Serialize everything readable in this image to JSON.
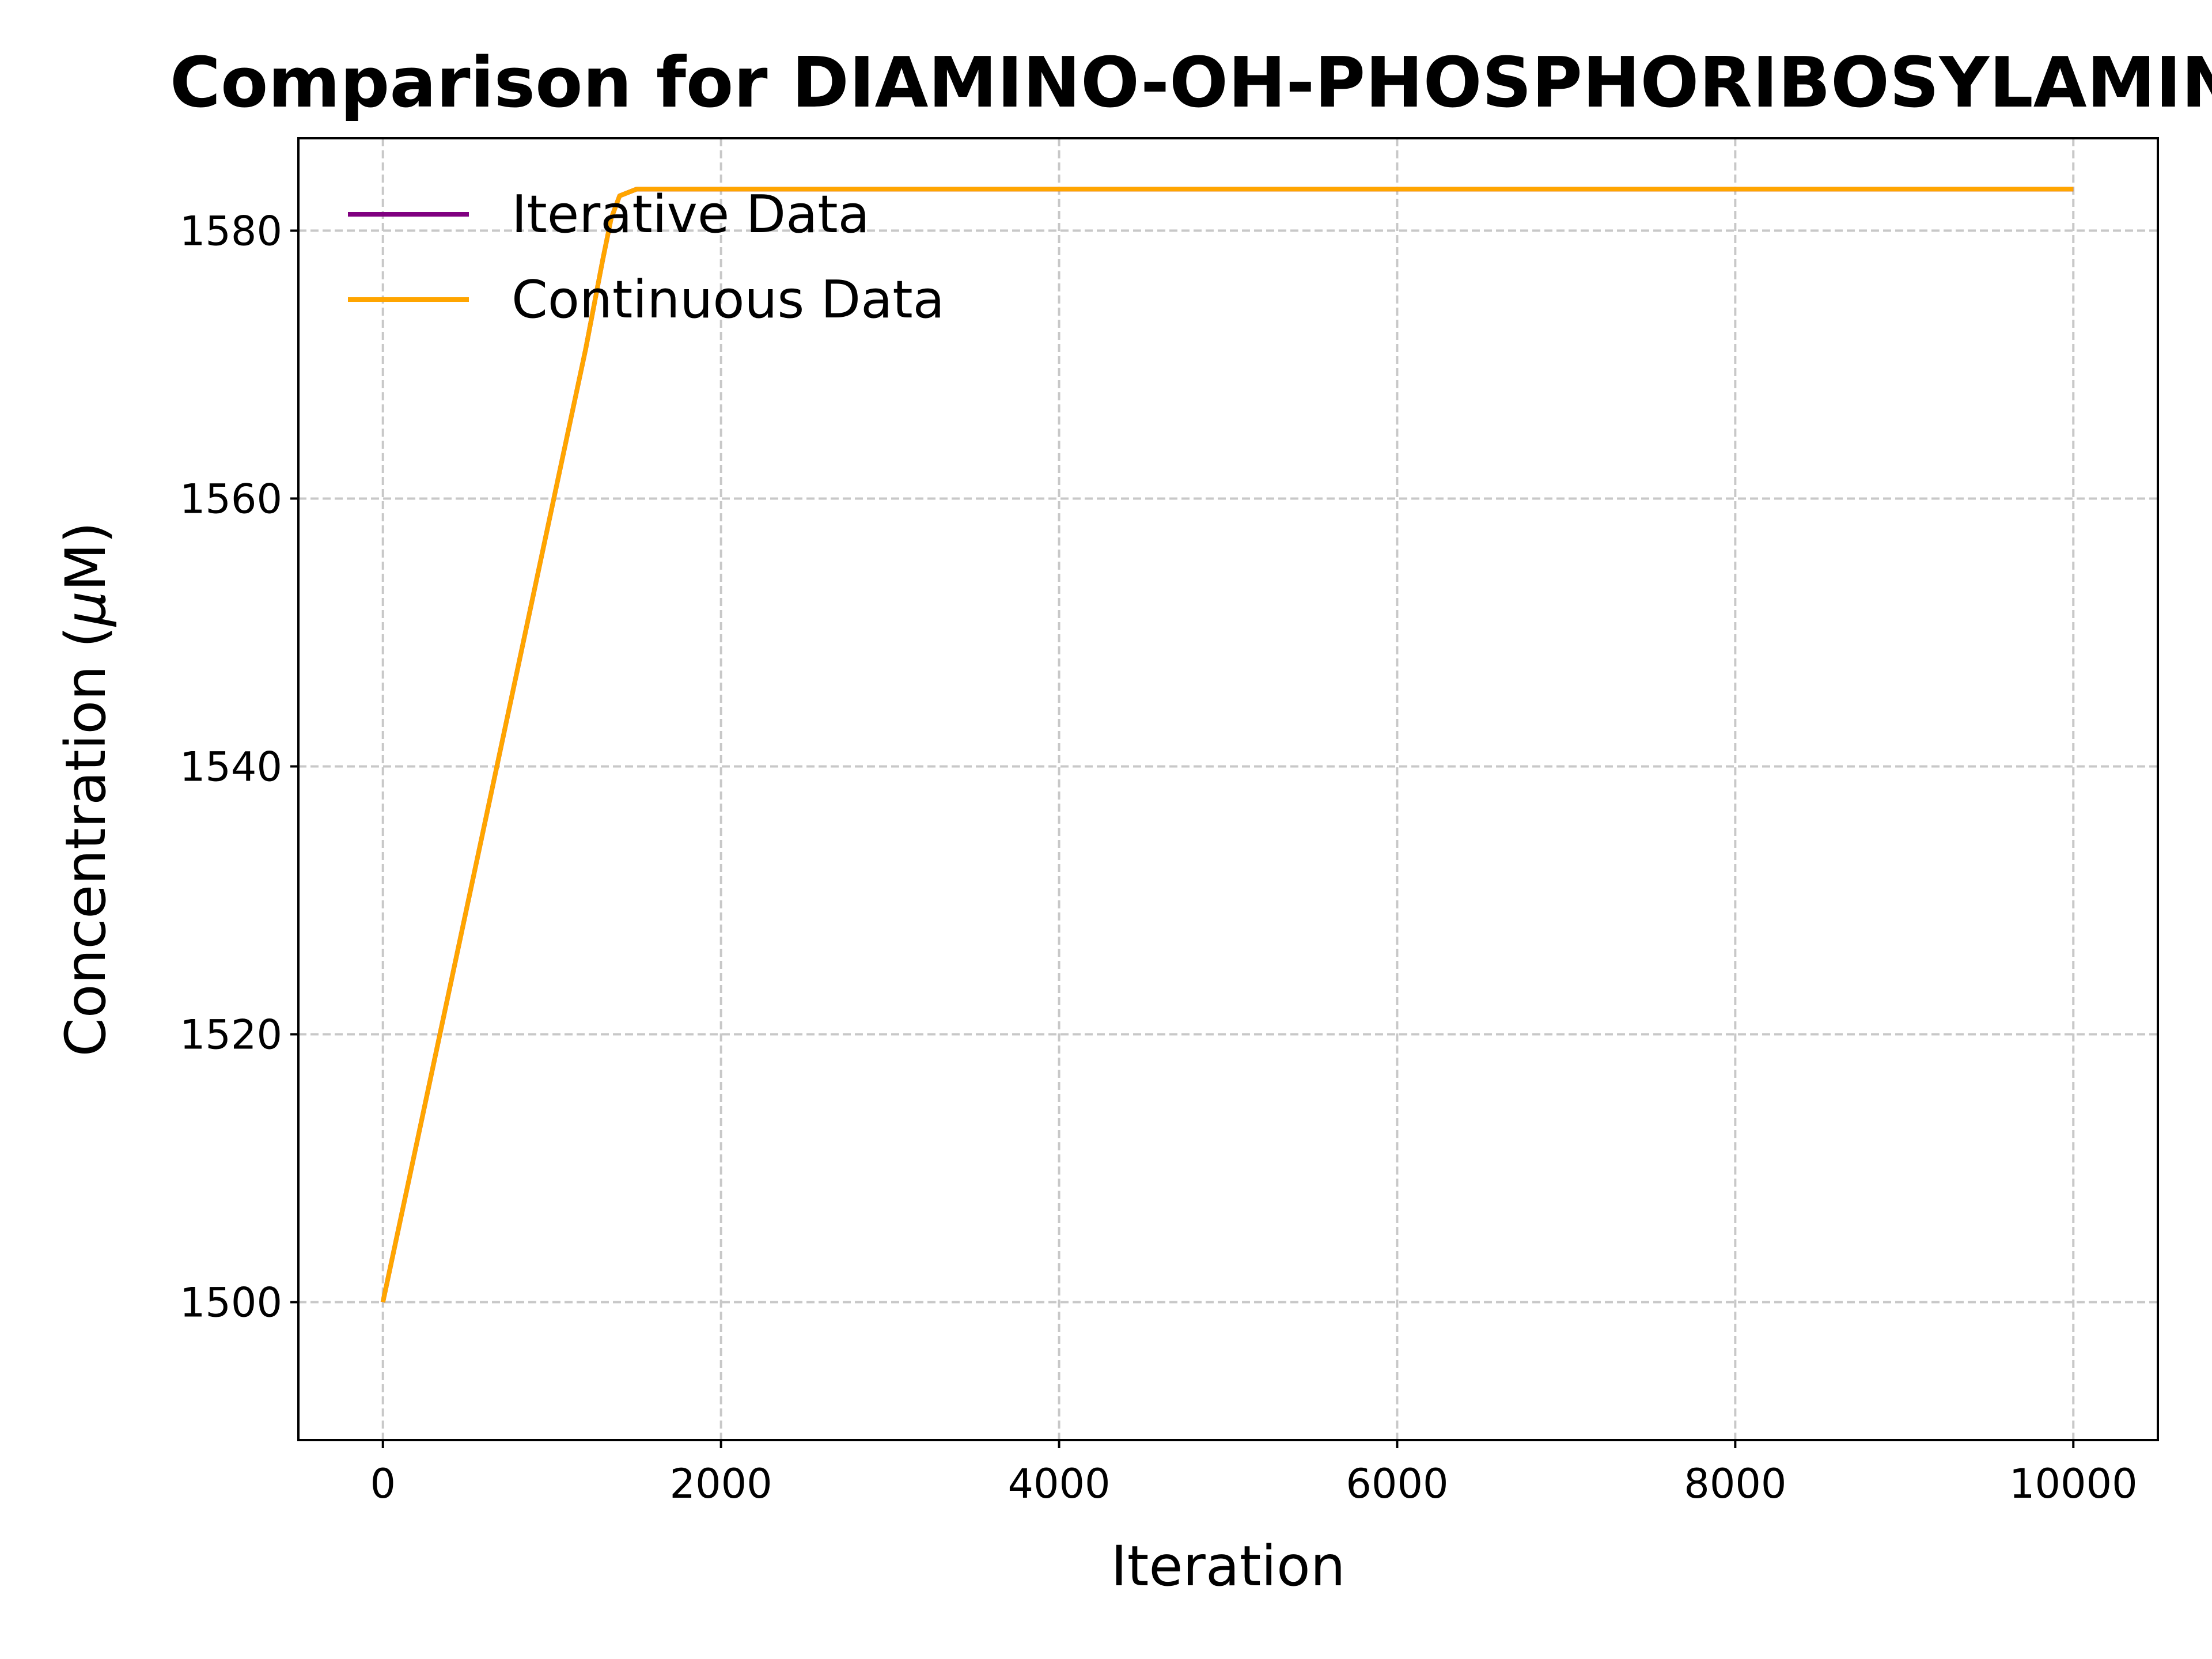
{
  "chart_data": {
    "type": "line",
    "title": "Comparison for DIAMINO-OH-PHOSPHORIBOSYLAMINE",
    "xlabel": "Iteration",
    "ylabel_main": "Concentration (",
    "ylabel_mu": "μ",
    "ylabel_tail": "M)",
    "xlim": [
      -500,
      10500
    ],
    "ylim": [
      1489.7,
      1586.9
    ],
    "x_ticks": [
      0,
      2000,
      4000,
      6000,
      8000,
      10000
    ],
    "x_tick_labels": [
      "0",
      "2000",
      "4000",
      "6000",
      "8000",
      "10000"
    ],
    "y_ticks": [
      1500,
      1520,
      1540,
      1560,
      1580
    ],
    "y_tick_labels": [
      "1500",
      "1520",
      "1540",
      "1560",
      "1580"
    ],
    "grid": true,
    "legend_position": "top-left",
    "series": [
      {
        "name": "Iterative Data",
        "color": "#800080",
        "x": [
          0,
          300,
          600,
          900,
          1200,
          1300,
          1350,
          1400,
          1500,
          2000,
          4000,
          6000,
          8000,
          10000
        ],
        "y": [
          1500,
          1517.8,
          1535.6,
          1553.4,
          1571.2,
          1577.8,
          1580.9,
          1582.6,
          1583.1,
          1583.1,
          1583.1,
          1583.1,
          1583.1,
          1583.1
        ]
      },
      {
        "name": "Continuous Data",
        "color": "#FFA500",
        "x": [
          0,
          300,
          600,
          900,
          1200,
          1300,
          1350,
          1400,
          1500,
          2000,
          4000,
          6000,
          8000,
          10000
        ],
        "y": [
          1500,
          1517.8,
          1535.6,
          1553.4,
          1571.2,
          1577.8,
          1580.9,
          1582.6,
          1583.1,
          1583.1,
          1583.1,
          1583.1,
          1583.1,
          1583.1
        ]
      }
    ]
  }
}
